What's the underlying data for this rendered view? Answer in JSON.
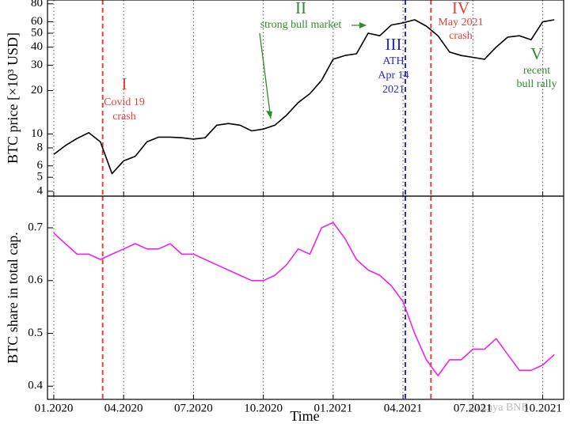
{
  "chart_data": [
    {
      "type": "line",
      "ylabel": "BTC price [×10³ USD]",
      "log_scale": true,
      "x": [
        0,
        0.5,
        1,
        1.5,
        2,
        2.5,
        3,
        3.5,
        4,
        4.5,
        5,
        5.5,
        6,
        6.5,
        7,
        7.5,
        8,
        8.5,
        9,
        9.5,
        10,
        10.5,
        11,
        11.5,
        12,
        12.5,
        13,
        13.5,
        14,
        14.5,
        15,
        15.5,
        16,
        16.5,
        17,
        17.5,
        18,
        18.5,
        19,
        19.5,
        20,
        20.5,
        21,
        21.5
      ],
      "values": [
        7.2,
        8.3,
        9.3,
        10.2,
        8.8,
        5.3,
        6.5,
        7.0,
        8.8,
        9.5,
        9.5,
        9.4,
        9.2,
        9.4,
        11.5,
        11.8,
        11.5,
        10.5,
        10.8,
        11.5,
        13.5,
        16.5,
        19,
        23.5,
        33,
        35,
        36,
        50,
        48,
        57,
        59,
        62,
        56,
        48,
        37,
        35,
        34,
        33,
        40,
        47,
        48,
        45,
        60,
        62
      ],
      "color": "#000000",
      "xlim": [
        -0.27,
        21.9
      ],
      "ylim": [
        3.7,
        85
      ],
      "xticks": [
        0,
        3,
        6,
        9,
        12,
        15,
        18,
        21
      ],
      "yticks": [
        4,
        5,
        6,
        8,
        10,
        20,
        30,
        40,
        50,
        60,
        80
      ],
      "grid": true,
      "events": [
        {
          "x": 2.1,
          "color": "#e8403a"
        },
        {
          "x": 15.1,
          "color": "#2a2ad0"
        },
        {
          "x": 16.2,
          "color": "#e8403a"
        }
      ],
      "annotations": [
        {
          "label": "I",
          "lines": [
            "Covid 19",
            "crash"
          ],
          "color": "#e8403a"
        },
        {
          "label": "II",
          "lines": [
            "strong bull market"
          ],
          "color": "#2e8b2e"
        },
        {
          "label": "III",
          "lines": [
            "ATH",
            "Apr 14",
            "2021"
          ],
          "color": "#2a2ad0"
        },
        {
          "label": "IV",
          "lines": [
            "May 2021",
            "crash"
          ],
          "color": "#e8403a"
        },
        {
          "label": "V",
          "lines": [
            "recent",
            "bull rally"
          ],
          "color": "#2e8b2e"
        }
      ]
    },
    {
      "type": "line",
      "ylabel": "BTC share in total cap.",
      "xlabel": "Time",
      "x": [
        0,
        0.5,
        1,
        1.5,
        2,
        2.5,
        3,
        3.5,
        4,
        4.5,
        5,
        5.5,
        6,
        6.5,
        7,
        7.5,
        8,
        8.5,
        9,
        9.5,
        10,
        10.5,
        11,
        11.5,
        12,
        12.5,
        13,
        13.5,
        14,
        14.5,
        15,
        15.5,
        16,
        16.5,
        17,
        17.5,
        18,
        18.5,
        19,
        19.5,
        20,
        20.5,
        21,
        21.5
      ],
      "values": [
        0.69,
        0.67,
        0.65,
        0.65,
        0.64,
        0.65,
        0.66,
        0.67,
        0.66,
        0.66,
        0.67,
        0.65,
        0.65,
        0.64,
        0.63,
        0.62,
        0.61,
        0.6,
        0.6,
        0.61,
        0.63,
        0.66,
        0.65,
        0.7,
        0.71,
        0.68,
        0.64,
        0.62,
        0.61,
        0.59,
        0.56,
        0.5,
        0.45,
        0.42,
        0.45,
        0.45,
        0.47,
        0.47,
        0.49,
        0.46,
        0.43,
        0.43,
        0.44,
        0.46
      ],
      "color": "#ee22ee",
      "xlim": [
        -0.27,
        21.9
      ],
      "ylim": [
        0.375,
        0.76
      ],
      "xticks": [
        {
          "value": 0,
          "label": "01.2020"
        },
        {
          "value": 3,
          "label": "04.2020"
        },
        {
          "value": 6,
          "label": "07.2020"
        },
        {
          "value": 9,
          "label": "10.2020"
        },
        {
          "value": 12,
          "label": "01.2021"
        },
        {
          "value": 15,
          "label": "04.2021"
        },
        {
          "value": 18,
          "label": "07.2021"
        },
        {
          "value": 21,
          "label": "10.2021"
        }
      ],
      "yticks": [
        0.4,
        0.5,
        0.6,
        0.7
      ],
      "grid": true
    },
    {
      "watermark": "@Anya BNB"
    }
  ]
}
